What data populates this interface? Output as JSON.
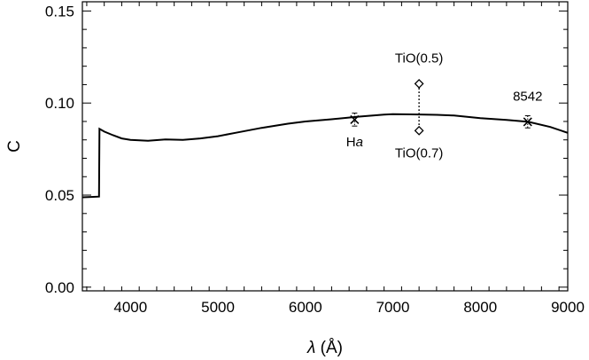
{
  "chart_data": {
    "type": "line",
    "title": "",
    "xlabel_symbol": "λ",
    "xlabel_unit": " (Å)",
    "ylabel": "C",
    "xlim": [
      3450,
      9000
    ],
    "ylim": [
      -0.002,
      0.155
    ],
    "x_ticks": [
      {
        "value": 4000,
        "label": "4000"
      },
      {
        "value": 5000,
        "label": "5000"
      },
      {
        "value": 6000,
        "label": "6000"
      },
      {
        "value": 7000,
        "label": "7000"
      },
      {
        "value": 8000,
        "label": "8000"
      },
      {
        "value": 9000,
        "label": "9000"
      }
    ],
    "y_ticks": [
      {
        "value": 0.0,
        "label": "0.00"
      },
      {
        "value": 0.05,
        "label": "0.05"
      },
      {
        "value": 0.1,
        "label": "0.10"
      },
      {
        "value": 0.15,
        "label": "0.15"
      }
    ],
    "grid": false,
    "series": [
      {
        "x": [
          3450,
          3550,
          3640,
          3645,
          3700,
          3800,
          3900,
          4000,
          4200,
          4400,
          4600,
          4800,
          5000,
          5200,
          5500,
          5800,
          6000,
          6300,
          6600,
          6900,
          7000,
          7300,
          7500,
          7700,
          8000,
          8300,
          8550,
          8800,
          9000
        ],
        "y": [
          0.0488,
          0.049,
          0.0492,
          0.086,
          0.0845,
          0.0825,
          0.0808,
          0.08,
          0.0795,
          0.0802,
          0.08,
          0.0808,
          0.082,
          0.0838,
          0.0865,
          0.0888,
          0.09,
          0.0912,
          0.0926,
          0.0937,
          0.094,
          0.0938,
          0.0936,
          0.0932,
          0.0918,
          0.0908,
          0.0898,
          0.087,
          0.0838
        ]
      }
    ],
    "annotations": [
      {
        "label": "Hα",
        "label_main": "H",
        "label_italic": "a",
        "x": 6563,
        "y": 0.091,
        "marker": "x",
        "err": 0.0035,
        "label_position": "below"
      },
      {
        "label": "8542",
        "x": 8542,
        "y": 0.0898,
        "marker": "x",
        "err": 0.0033,
        "label_position": "above"
      },
      {
        "label": "TiO(0.5)",
        "x": 7300,
        "y": 0.1105,
        "marker": "diamond",
        "label_position": "above"
      },
      {
        "label": "TiO(0.7)",
        "x": 7300,
        "y": 0.085,
        "marker": "diamond",
        "label_position": "below"
      }
    ]
  }
}
